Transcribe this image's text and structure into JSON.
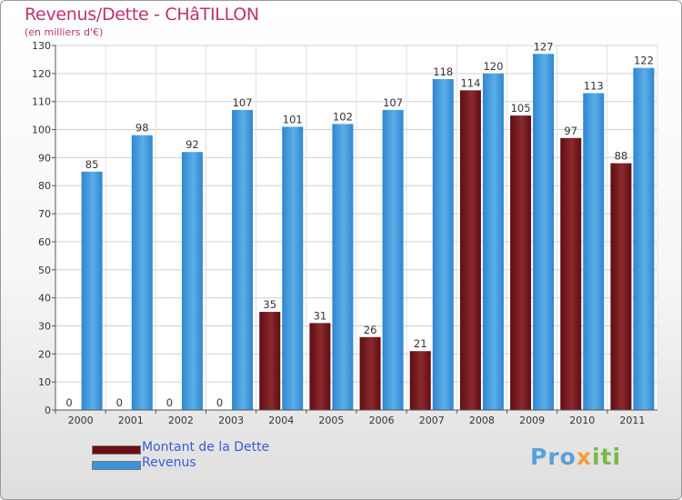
{
  "title": "Revenus/Dette - CHâTILLON",
  "unit_label": "(en milliers d'€)",
  "chart_data": {
    "type": "bar",
    "title": "Revenus/Dette - CHâTILLON",
    "ylabel": "(en milliers d'€)",
    "categories": [
      "2000",
      "2001",
      "2002",
      "2003",
      "2004",
      "2005",
      "2006",
      "2007",
      "2008",
      "2009",
      "2010",
      "2011"
    ],
    "series": [
      {
        "name": "Montant de la Dette",
        "color": "#7a1e22",
        "values": [
          0,
          0,
          0,
          0,
          35,
          31,
          26,
          21,
          114,
          105,
          97,
          88
        ]
      },
      {
        "name": "Revenus",
        "color": "#3a8fd8",
        "values": [
          85,
          98,
          92,
          107,
          101,
          102,
          107,
          118,
          120,
          127,
          113,
          122
        ]
      }
    ],
    "ylim": [
      0,
      130
    ],
    "yticks": [
      0,
      10,
      20,
      30,
      40,
      50,
      60,
      70,
      80,
      90,
      100,
      110,
      120,
      130
    ],
    "grid": true,
    "legend": "bottom-left"
  },
  "legend": [
    {
      "label": "Montant de la Dette",
      "color": "#6b0f14"
    },
    {
      "label": "Revenus",
      "color": "#3b93dd"
    }
  ],
  "brand": {
    "part1": "Pro",
    "part2": "x",
    "part3": "iti"
  }
}
